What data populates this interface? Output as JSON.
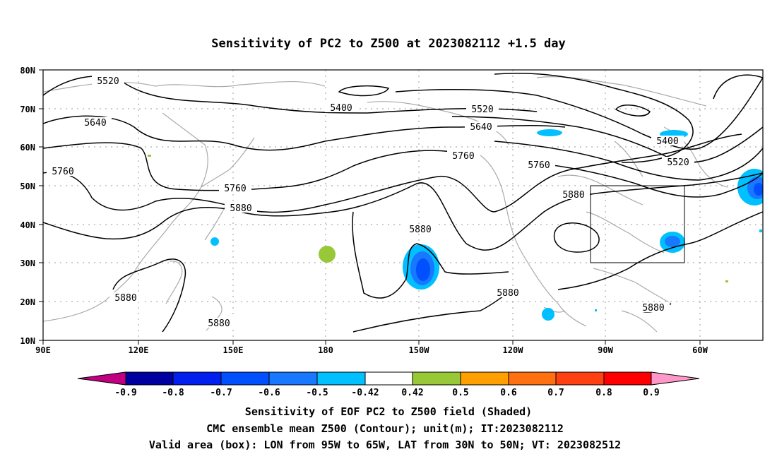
{
  "title": "Sensitivity of PC2 to Z500 at 2023082112 +1.5 day",
  "lat_ticks": [
    "80N",
    "70N",
    "60N",
    "50N",
    "40N",
    "30N",
    "20N",
    "10N"
  ],
  "lon_ticks": [
    "90E",
    "120E",
    "150E",
    "180",
    "150W",
    "120W",
    "90W",
    "60W"
  ],
  "contour_labels": [
    {
      "id": "c5520a",
      "text": "5520"
    },
    {
      "id": "c5640a",
      "text": "5640"
    },
    {
      "id": "c5760a",
      "text": "5760"
    },
    {
      "id": "c5400a",
      "text": "5400"
    },
    {
      "id": "c5520b",
      "text": "5520"
    },
    {
      "id": "c5640b",
      "text": "5640"
    },
    {
      "id": "c5760b",
      "text": "5760"
    },
    {
      "id": "c5880a",
      "text": "5880"
    },
    {
      "id": "c5760c",
      "text": "5760"
    },
    {
      "id": "c5760d",
      "text": "5760"
    },
    {
      "id": "c5880b",
      "text": "5880"
    },
    {
      "id": "c5880c",
      "text": "5880"
    },
    {
      "id": "c5400b",
      "text": "5400"
    },
    {
      "id": "c5520c",
      "text": "5520"
    },
    {
      "id": "c5880d",
      "text": "5880"
    },
    {
      "id": "c5880e",
      "text": "5880"
    },
    {
      "id": "c5880f",
      "text": "5880"
    },
    {
      "id": "c5880g",
      "text": "5880"
    }
  ],
  "colorbar": {
    "labels": [
      "-0.9",
      "-0.8",
      "-0.7",
      "-0.6",
      "-0.5",
      "-0.42",
      "0.42",
      "0.5",
      "0.6",
      "0.7",
      "0.8",
      "0.9"
    ],
    "colors": [
      "#0000a0",
      "#0020f0",
      "#0050ff",
      "#1878ff",
      "#00c0ff",
      "#ffffff",
      "#98c838",
      "#ffa000",
      "#ff7010",
      "#ff4010",
      "#ff0000"
    ],
    "low_color": "#c00080",
    "high_color": "#ff98c8"
  },
  "footer": {
    "line1": "Sensitivity of EOF PC2 to Z500 field (Shaded)",
    "line2": "CMC ensemble mean Z500 (Contour); unit(m); IT:2023082112",
    "line3": "Valid area (box): LON from 95W to 65W, LAT from 30N to 50N; VT: 2023082512"
  }
}
